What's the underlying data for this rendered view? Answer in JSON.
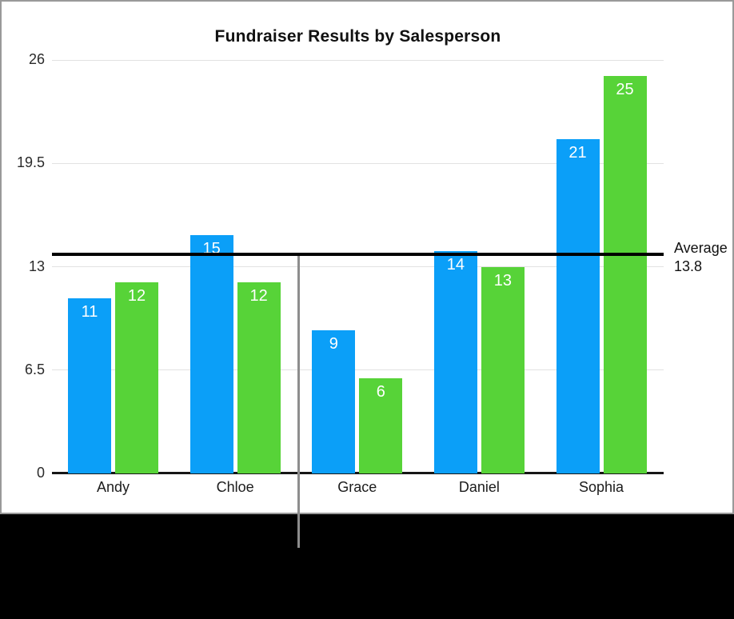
{
  "chart_data": {
    "type": "bar",
    "title": "Fundraiser Results by Salesperson",
    "categories": [
      "Andy",
      "Chloe",
      "Grace",
      "Daniel",
      "Sophia"
    ],
    "series": [
      {
        "name": "blue-series",
        "color": "#0b9ff8",
        "values": [
          11,
          15,
          9,
          14,
          21
        ]
      },
      {
        "name": "green-series",
        "color": "#57d338",
        "values": [
          12,
          12,
          6,
          13,
          25
        ]
      }
    ],
    "ylim": [
      0,
      26
    ],
    "y_ticks": [
      26,
      19.5,
      13,
      6.5,
      0
    ],
    "y_tick_labels": [
      "26",
      "19.5",
      "13",
      "6.5",
      "0"
    ],
    "grid": true,
    "legend": "none",
    "value_labels_shown": true,
    "reference_line": {
      "label": "Average",
      "value_label": "13.8",
      "value": 13.8,
      "color": "#000000"
    }
  },
  "colors": {
    "bar_blue": "#0b9ff8",
    "bar_green": "#57d338",
    "gridline": "#e2e2e2",
    "axis": "#161616",
    "panel_border": "#999999",
    "page_background": "#000000",
    "callout_line": "#8d8d8d",
    "value_label_text": "#ffffff"
  }
}
